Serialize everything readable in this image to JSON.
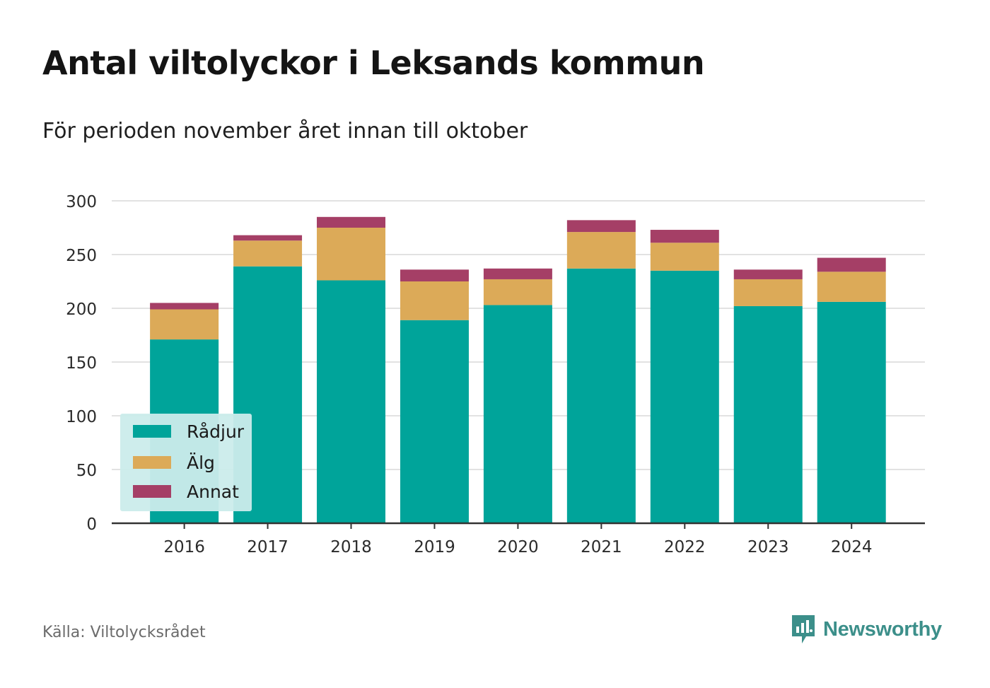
{
  "title": "Antal viltolyckor i Leksands kommun",
  "subtitle": "För perioden november året innan till oktober",
  "source": "Källa: Viltolycksrådet",
  "brand": "Newsworthy",
  "colors": {
    "radjur": "#00a49a",
    "alg": "#dcaa58",
    "annat": "#a53f66",
    "grid": "#d9d9d9",
    "axis": "#333333",
    "brand": "#3c8f8a"
  },
  "chart_data": {
    "type": "bar",
    "stacked": true,
    "categories": [
      "2016",
      "2017",
      "2018",
      "2019",
      "2020",
      "2021",
      "2022",
      "2023",
      "2024"
    ],
    "series": [
      {
        "name": "Rådjur",
        "color": "#00a49a",
        "values": [
          171,
          239,
          226,
          189,
          203,
          237,
          235,
          202,
          206
        ]
      },
      {
        "name": "Älg",
        "color": "#dcaa58",
        "values": [
          28,
          24,
          49,
          36,
          24,
          34,
          26,
          25,
          28
        ]
      },
      {
        "name": "Annat",
        "color": "#a53f66",
        "values": [
          6,
          5,
          10,
          11,
          10,
          11,
          12,
          9,
          13
        ]
      }
    ],
    "ylim": [
      0,
      300
    ],
    "yticks": [
      0,
      50,
      100,
      150,
      200,
      250,
      300
    ],
    "grid": true,
    "legend_position": "bottom-left",
    "xlabel": "",
    "ylabel": ""
  }
}
